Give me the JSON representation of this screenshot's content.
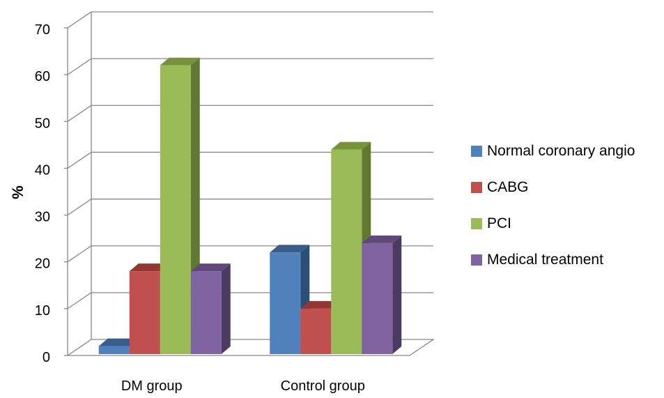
{
  "chart_data": {
    "type": "bar",
    "style": "3d-clustered-column",
    "categories": [
      "DM group",
      "Control group"
    ],
    "series": [
      {
        "name": "Normal coronary angio",
        "values": [
          2,
          22
        ],
        "color": "#4F81BD",
        "top_color": "#385D8A",
        "side_color": "#2C4D75"
      },
      {
        "name": "CABG",
        "values": [
          18,
          10
        ],
        "color": "#C0504D",
        "top_color": "#943634",
        "side_color": "#7F2E2C"
      },
      {
        "name": "PCI",
        "values": [
          62,
          44
        ],
        "color": "#9BBB59",
        "top_color": "#76923C",
        "side_color": "#5F7A30"
      },
      {
        "name": "Medical treatment",
        "values": [
          18,
          24
        ],
        "color": "#8064A2",
        "top_color": "#5F497A",
        "side_color": "#4B3A61"
      }
    ],
    "ylabel": "%",
    "xlabel": "",
    "ylim": [
      0,
      70
    ],
    "yticks": [
      0,
      10,
      20,
      30,
      40,
      50,
      60,
      70
    ],
    "grid": true,
    "legend_position": "right"
  }
}
